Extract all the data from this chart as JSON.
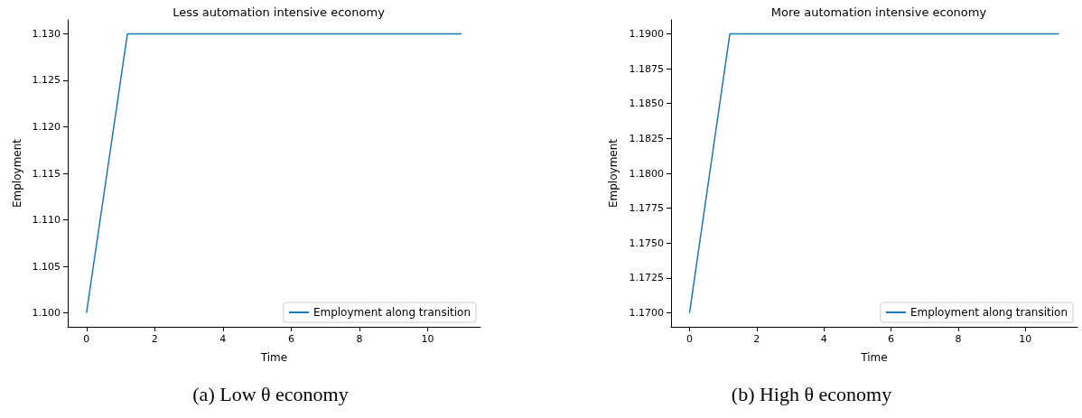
{
  "chart_data": [
    {
      "type": "line",
      "title": "Less automation intensive economy",
      "xlabel": "Time",
      "ylabel": "Employment",
      "x": [
        0,
        1.2,
        11
      ],
      "series": [
        {
          "name": "Employment along transition",
          "color": "#1f77b4",
          "values": [
            1.1,
            1.13,
            1.13
          ]
        }
      ],
      "xlim": [
        -0.55,
        11.55
      ],
      "xticks": [
        0,
        2,
        4,
        6,
        8,
        10
      ],
      "ylim": [
        1.0985,
        1.1315
      ],
      "yticks": [
        {
          "value": 1.1,
          "label": "1.100"
        },
        {
          "value": 1.105,
          "label": "1.105"
        },
        {
          "value": 1.11,
          "label": "1.110"
        },
        {
          "value": 1.115,
          "label": "1.115"
        },
        {
          "value": 1.12,
          "label": "1.120"
        },
        {
          "value": 1.125,
          "label": "1.125"
        },
        {
          "value": 1.13,
          "label": "1.130"
        }
      ],
      "grid": false,
      "legend": "bottom right",
      "annotations": [
        "(a) Low θ economy"
      ]
    },
    {
      "type": "line",
      "title": "More automation intensive economy",
      "xlabel": "Time",
      "ylabel": "Employment",
      "x": [
        0,
        1.2,
        11
      ],
      "series": [
        {
          "name": "Employment along transition",
          "color": "#1f77b4",
          "values": [
            1.17,
            1.19,
            1.19
          ]
        }
      ],
      "xlim": [
        -0.55,
        11.55
      ],
      "xticks": [
        0,
        2,
        4,
        6,
        8,
        10
      ],
      "ylim": [
        1.169,
        1.191
      ],
      "yticks": [
        {
          "value": 1.17,
          "label": "1.1700"
        },
        {
          "value": 1.1725,
          "label": "1.1725"
        },
        {
          "value": 1.175,
          "label": "1.1750"
        },
        {
          "value": 1.1775,
          "label": "1.1775"
        },
        {
          "value": 1.18,
          "label": "1.1800"
        },
        {
          "value": 1.1825,
          "label": "1.1825"
        },
        {
          "value": 1.185,
          "label": "1.1850"
        },
        {
          "value": 1.1875,
          "label": "1.1875"
        },
        {
          "value": 1.19,
          "label": "1.1900"
        }
      ],
      "grid": false,
      "legend": "bottom right",
      "annotations": [
        "(b) High θ economy"
      ]
    }
  ]
}
